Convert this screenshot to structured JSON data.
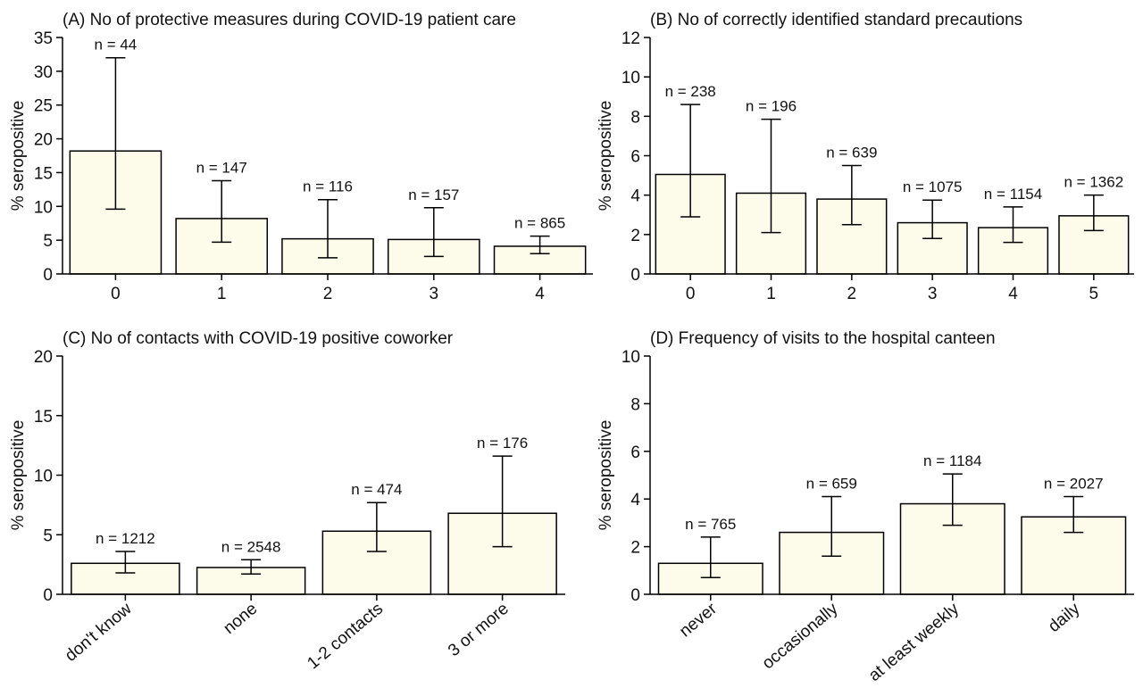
{
  "colors": {
    "bar_fill": "#fdfbea",
    "stroke": "#000000"
  },
  "chart_data": [
    {
      "id": "A",
      "type": "bar",
      "title": "(A) No of protective measures during COVID-19 patient care",
      "ylabel": "% seropositive",
      "ylim": [
        0,
        35
      ],
      "yticks": [
        0,
        5,
        10,
        15,
        20,
        25,
        30,
        35
      ],
      "categories": [
        "0",
        "1",
        "2",
        "3",
        "4"
      ],
      "values": [
        18.2,
        8.2,
        5.2,
        5.1,
        4.1
      ],
      "ci_low": [
        9.6,
        4.7,
        2.4,
        2.6,
        3.0
      ],
      "ci_high": [
        32.0,
        13.8,
        11.0,
        9.8,
        5.6
      ],
      "n_labels": [
        "n = 44",
        "n = 147",
        "n = 116",
        "n = 157",
        "n = 865"
      ],
      "rotate_xticks": false
    },
    {
      "id": "B",
      "type": "bar",
      "title": "(B) No of correctly identified standard precautions",
      "ylabel": "% seropositive",
      "ylim": [
        0,
        12
      ],
      "yticks": [
        0,
        2,
        4,
        6,
        8,
        10,
        12
      ],
      "categories": [
        "0",
        "1",
        "2",
        "3",
        "4",
        "5"
      ],
      "values": [
        5.05,
        4.1,
        3.8,
        2.6,
        2.35,
        2.95
      ],
      "ci_low": [
        2.9,
        2.1,
        2.5,
        1.8,
        1.6,
        2.2
      ],
      "ci_high": [
        8.6,
        7.85,
        5.5,
        3.75,
        3.4,
        4.0
      ],
      "n_labels": [
        "n = 238",
        "n = 196",
        "n = 639",
        "n = 1075",
        "n = 1154",
        "n = 1362"
      ],
      "rotate_xticks": false
    },
    {
      "id": "C",
      "type": "bar",
      "title": "(C) No of contacts with COVID-19 positive coworker",
      "ylabel": "% seropositive",
      "ylim": [
        0,
        20
      ],
      "yticks": [
        0,
        5,
        10,
        15,
        20
      ],
      "categories": [
        "don't know",
        "none",
        "1-2 contacts",
        "3 or more"
      ],
      "values": [
        2.6,
        2.25,
        5.3,
        6.8
      ],
      "ci_low": [
        1.8,
        1.7,
        3.6,
        4.0
      ],
      "ci_high": [
        3.6,
        2.9,
        7.7,
        11.6
      ],
      "n_labels": [
        "n = 1212",
        "n = 2548",
        "n = 474",
        "n = 176"
      ],
      "rotate_xticks": true
    },
    {
      "id": "D",
      "type": "bar",
      "title": "(D) Frequency of visits to the hospital canteen",
      "ylabel": "% seropositive",
      "ylim": [
        0,
        10
      ],
      "yticks": [
        0,
        2,
        4,
        6,
        8,
        10
      ],
      "categories": [
        "never",
        "occasionally",
        "at least weekly",
        "daily"
      ],
      "values": [
        1.3,
        2.6,
        3.8,
        3.25
      ],
      "ci_low": [
        0.7,
        1.6,
        2.9,
        2.6
      ],
      "ci_high": [
        2.4,
        4.1,
        5.05,
        4.1
      ],
      "n_labels": [
        "n = 765",
        "n = 659",
        "n = 1184",
        "n = 2027"
      ],
      "rotate_xticks": true
    }
  ]
}
